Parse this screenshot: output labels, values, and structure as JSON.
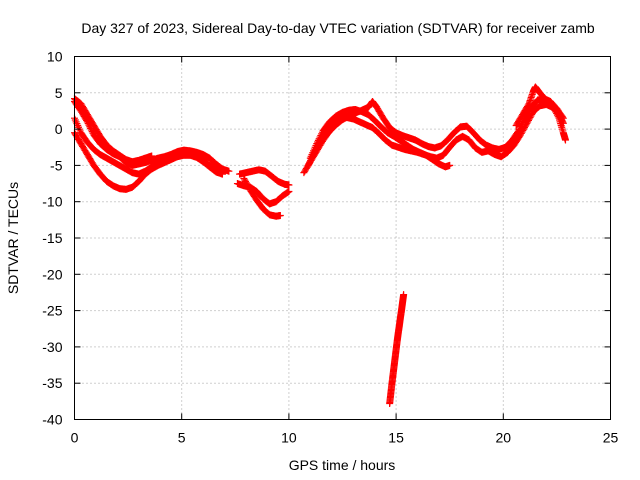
{
  "chart_data": {
    "type": "scatter",
    "title": "Day 327 of 2023, Sidereal Day-to-day VTEC variation (SDTVAR) for receiver zamb",
    "xlabel": "GPS time / hours",
    "ylabel": "SDTVAR / TECUs",
    "xlim": [
      0,
      25
    ],
    "ylim": [
      -40,
      10
    ],
    "xticks": [
      0,
      5,
      10,
      15,
      20,
      25
    ],
    "yticks": [
      10,
      5,
      0,
      -5,
      -10,
      -15,
      -20,
      -25,
      -30,
      -35,
      -40
    ],
    "x_tick_labels": [
      "0",
      "5",
      "10",
      "15",
      "20",
      "25"
    ],
    "y_tick_labels": [
      "10",
      "5",
      "0",
      "-5",
      "-10",
      "-15",
      "-20",
      "-25",
      "-30",
      "-35",
      "-40"
    ],
    "grid": true,
    "marker": "+",
    "color": "#ff0000",
    "series": [
      {
        "name": "track-a",
        "points": [
          [
            0.0,
            4.2
          ],
          [
            0.3,
            3.5
          ],
          [
            0.6,
            2.0
          ],
          [
            0.9,
            0.5
          ],
          [
            1.2,
            -1.0
          ],
          [
            1.5,
            -2.2
          ],
          [
            1.8,
            -3.0
          ],
          [
            2.1,
            -3.6
          ],
          [
            2.4,
            -4.2
          ],
          [
            2.7,
            -4.5
          ],
          [
            3.0,
            -4.3
          ],
          [
            3.3,
            -4.0
          ],
          [
            3.6,
            -3.7
          ]
        ]
      },
      {
        "name": "track-b",
        "points": [
          [
            0.0,
            3.8
          ],
          [
            0.3,
            2.5
          ],
          [
            0.6,
            1.0
          ],
          [
            0.9,
            -0.8
          ],
          [
            1.2,
            -2.0
          ],
          [
            1.5,
            -2.8
          ],
          [
            1.8,
            -3.4
          ],
          [
            2.1,
            -3.8
          ],
          [
            2.4,
            -4.6
          ],
          [
            2.7,
            -5.0
          ],
          [
            3.0,
            -4.8
          ],
          [
            3.3,
            -4.6
          ],
          [
            3.6,
            -4.3
          ],
          [
            3.9,
            -4.0
          ],
          [
            4.2,
            -3.8
          ],
          [
            4.5,
            -3.5
          ],
          [
            4.8,
            -3.1
          ],
          [
            5.1,
            -2.9
          ],
          [
            5.4,
            -3.0
          ],
          [
            5.7,
            -3.2
          ],
          [
            6.0,
            -3.5
          ],
          [
            6.3,
            -4.0
          ],
          [
            6.6,
            -4.8
          ],
          [
            6.9,
            -5.5
          ],
          [
            7.2,
            -5.8
          ]
        ]
      },
      {
        "name": "track-c",
        "points": [
          [
            0.0,
            1.5
          ],
          [
            0.3,
            -0.5
          ],
          [
            0.6,
            -1.8
          ],
          [
            0.9,
            -2.8
          ],
          [
            1.2,
            -3.5
          ],
          [
            1.5,
            -4.0
          ],
          [
            1.8,
            -4.5
          ],
          [
            2.1,
            -5.0
          ],
          [
            2.4,
            -5.5
          ],
          [
            2.7,
            -6.0
          ],
          [
            3.0,
            -6.2
          ],
          [
            3.3,
            -5.8
          ],
          [
            3.6,
            -5.2
          ],
          [
            3.9,
            -4.7
          ],
          [
            4.2,
            -4.3
          ],
          [
            4.5,
            -4.0
          ],
          [
            4.8,
            -3.5
          ],
          [
            5.1,
            -3.3
          ],
          [
            5.4,
            -3.4
          ],
          [
            5.7,
            -3.8
          ],
          [
            6.0,
            -4.3
          ],
          [
            6.3,
            -5.0
          ],
          [
            6.6,
            -5.6
          ],
          [
            6.9,
            -6.0
          ]
        ]
      },
      {
        "name": "track-d",
        "points": [
          [
            0.0,
            -0.5
          ],
          [
            0.3,
            -2.0
          ],
          [
            0.6,
            -3.5
          ],
          [
            0.9,
            -5.0
          ],
          [
            1.2,
            -6.2
          ],
          [
            1.5,
            -7.2
          ],
          [
            1.8,
            -7.8
          ],
          [
            2.1,
            -8.2
          ],
          [
            2.4,
            -8.3
          ],
          [
            2.7,
            -8.0
          ],
          [
            3.0,
            -7.2
          ],
          [
            3.3,
            -6.2
          ],
          [
            3.6,
            -5.5
          ],
          [
            3.9,
            -5.0
          ],
          [
            4.2,
            -4.6
          ],
          [
            4.5,
            -4.2
          ],
          [
            4.8,
            -3.8
          ],
          [
            5.1,
            -3.6
          ],
          [
            5.4,
            -3.6
          ],
          [
            5.7,
            -3.9
          ],
          [
            6.0,
            -4.5
          ],
          [
            6.3,
            -5.2
          ],
          [
            6.6,
            -5.9
          ],
          [
            6.9,
            -6.2
          ]
        ]
      },
      {
        "name": "track-e",
        "points": [
          [
            7.7,
            -6.2
          ],
          [
            8.0,
            -6.0
          ],
          [
            8.3,
            -5.8
          ],
          [
            8.6,
            -5.6
          ],
          [
            8.9,
            -5.8
          ],
          [
            9.2,
            -6.5
          ],
          [
            9.5,
            -7.2
          ],
          [
            9.8,
            -7.6
          ],
          [
            10.0,
            -7.7
          ]
        ]
      },
      {
        "name": "track-f",
        "points": [
          [
            7.6,
            -7.5
          ],
          [
            7.9,
            -7.8
          ],
          [
            8.2,
            -8.0
          ],
          [
            8.5,
            -8.6
          ],
          [
            8.8,
            -9.6
          ],
          [
            9.1,
            -10.3
          ],
          [
            9.4,
            -10.0
          ],
          [
            9.7,
            -9.2
          ],
          [
            10.0,
            -8.6
          ]
        ]
      },
      {
        "name": "track-g",
        "points": [
          [
            7.9,
            -6.8
          ],
          [
            8.2,
            -8.4
          ],
          [
            8.5,
            -9.8
          ],
          [
            8.8,
            -11.0
          ],
          [
            9.1,
            -11.8
          ],
          [
            9.4,
            -12.0
          ],
          [
            9.6,
            -11.9
          ]
        ]
      },
      {
        "name": "track-h",
        "points": [
          [
            10.7,
            -6.0
          ],
          [
            11.0,
            -4.5
          ],
          [
            11.3,
            -3.0
          ],
          [
            11.6,
            -1.5
          ],
          [
            11.9,
            -0.3
          ],
          [
            12.2,
            0.6
          ],
          [
            12.5,
            1.3
          ],
          [
            12.8,
            1.8
          ],
          [
            13.1,
            2.2
          ],
          [
            13.4,
            2.6
          ],
          [
            13.7,
            3.0
          ],
          [
            13.9,
            3.8
          ],
          [
            14.1,
            3.0
          ],
          [
            14.4,
            1.5
          ],
          [
            14.7,
            0.2
          ],
          [
            15.0,
            -0.5
          ],
          [
            15.3,
            -0.9
          ],
          [
            15.6,
            -1.2
          ],
          [
            15.9,
            -1.5
          ],
          [
            16.2,
            -2.0
          ],
          [
            16.5,
            -2.4
          ],
          [
            16.8,
            -2.6
          ],
          [
            17.1,
            -2.3
          ],
          [
            17.4,
            -1.5
          ],
          [
            17.7,
            -0.5
          ],
          [
            18.0,
            0.3
          ],
          [
            18.3,
            0.4
          ],
          [
            18.6,
            -0.5
          ],
          [
            18.9,
            -1.5
          ],
          [
            19.2,
            -2.2
          ],
          [
            19.5,
            -2.6
          ],
          [
            19.8,
            -2.8
          ],
          [
            20.1,
            -2.5
          ],
          [
            20.4,
            -1.6
          ],
          [
            20.7,
            -0.3
          ],
          [
            21.0,
            1.5
          ],
          [
            21.3,
            3.0
          ],
          [
            21.6,
            4.0
          ],
          [
            21.9,
            4.2
          ],
          [
            22.2,
            3.8
          ],
          [
            22.5,
            2.8
          ],
          [
            22.8,
            1.5
          ]
        ]
      },
      {
        "name": "track-i",
        "points": [
          [
            10.9,
            -5.0
          ],
          [
            11.2,
            -3.2
          ],
          [
            11.5,
            -1.4
          ],
          [
            11.8,
            0.0
          ],
          [
            12.1,
            0.8
          ],
          [
            12.4,
            1.4
          ],
          [
            12.7,
            1.6
          ],
          [
            13.0,
            1.4
          ],
          [
            13.3,
            1.0
          ],
          [
            13.6,
            0.6
          ],
          [
            13.9,
            0.2
          ],
          [
            14.2,
            -0.6
          ],
          [
            14.5,
            -1.5
          ],
          [
            14.8,
            -2.2
          ],
          [
            15.1,
            -2.5
          ],
          [
            15.4,
            -2.8
          ],
          [
            15.7,
            -3.0
          ],
          [
            16.0,
            -3.2
          ],
          [
            16.3,
            -3.5
          ],
          [
            16.6,
            -3.8
          ],
          [
            16.9,
            -4.0
          ],
          [
            17.2,
            -3.6
          ],
          [
            17.5,
            -2.5
          ],
          [
            17.8,
            -1.5
          ],
          [
            18.1,
            -1.0
          ],
          [
            18.4,
            -1.5
          ],
          [
            18.7,
            -2.6
          ],
          [
            19.0,
            -3.2
          ],
          [
            19.3,
            -3.0
          ],
          [
            19.6,
            -3.5
          ],
          [
            19.9,
            -3.8
          ],
          [
            20.2,
            -3.2
          ],
          [
            20.5,
            -2.2
          ],
          [
            20.8,
            -0.8
          ],
          [
            21.1,
            0.8
          ],
          [
            21.4,
            2.4
          ],
          [
            21.7,
            3.2
          ],
          [
            22.0,
            3.4
          ],
          [
            22.3,
            3.0
          ],
          [
            22.6,
            2.0
          ],
          [
            22.8,
            0.8
          ]
        ]
      },
      {
        "name": "track-j",
        "points": [
          [
            11.0,
            -4.0
          ],
          [
            11.3,
            -2.0
          ],
          [
            11.6,
            -0.2
          ],
          [
            11.9,
            1.0
          ],
          [
            12.2,
            1.8
          ],
          [
            12.5,
            2.3
          ],
          [
            12.8,
            2.6
          ],
          [
            13.1,
            2.7
          ],
          [
            13.4,
            2.4
          ],
          [
            13.7,
            2.0
          ],
          [
            14.0,
            1.2
          ],
          [
            14.3,
            0.3
          ],
          [
            14.6,
            -0.5
          ],
          [
            14.9,
            -1.0
          ],
          [
            15.2,
            -1.6
          ],
          [
            15.5,
            -2.2
          ],
          [
            15.8,
            -2.8
          ],
          [
            16.1,
            -3.2
          ],
          [
            16.4,
            -3.6
          ],
          [
            16.7,
            -4.2
          ],
          [
            17.0,
            -4.8
          ],
          [
            17.3,
            -5.2
          ],
          [
            17.5,
            -5.0
          ]
        ]
      },
      {
        "name": "track-k",
        "points": [
          [
            20.6,
            0.5
          ],
          [
            20.9,
            2.0
          ],
          [
            21.2,
            3.5
          ],
          [
            21.4,
            5.2
          ],
          [
            21.5,
            5.8
          ],
          [
            21.7,
            5.0
          ],
          [
            22.0,
            4.0
          ],
          [
            22.3,
            3.2
          ],
          [
            22.6,
            1.5
          ],
          [
            22.8,
            -0.5
          ],
          [
            22.9,
            -1.5
          ]
        ]
      },
      {
        "name": "track-l",
        "points": [
          [
            14.7,
            -37.8
          ],
          [
            14.75,
            -36.5
          ],
          [
            14.8,
            -35.2
          ],
          [
            14.85,
            -34.0
          ],
          [
            14.9,
            -32.8
          ],
          [
            14.95,
            -31.6
          ],
          [
            15.0,
            -30.4
          ],
          [
            15.05,
            -29.2
          ],
          [
            15.1,
            -28.1
          ],
          [
            15.15,
            -27.1
          ],
          [
            15.2,
            -26.0
          ],
          [
            15.25,
            -25.0
          ],
          [
            15.3,
            -23.9
          ],
          [
            15.35,
            -22.8
          ]
        ]
      }
    ]
  }
}
